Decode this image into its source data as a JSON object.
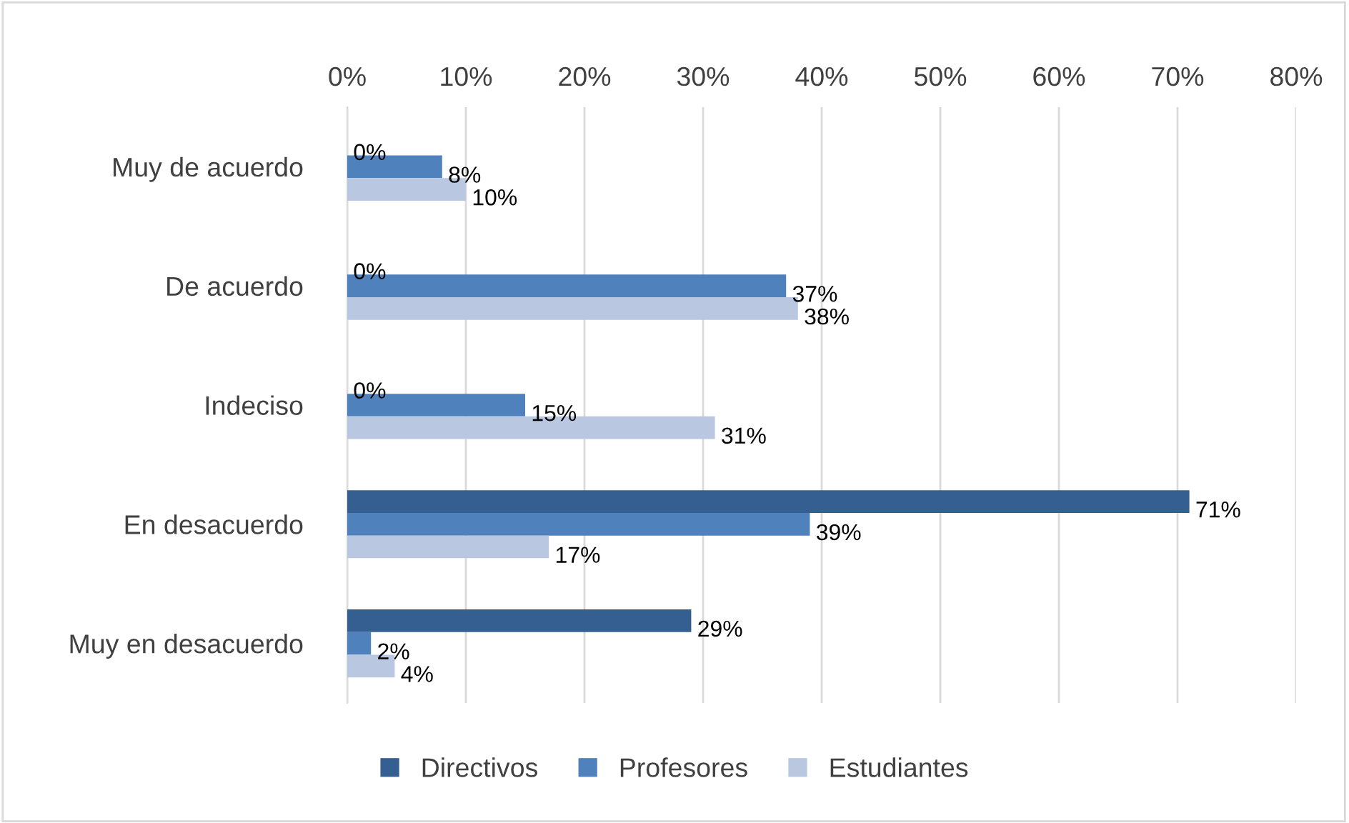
{
  "chart_data": {
    "type": "bar",
    "orientation": "horizontal",
    "categories": [
      "Muy de acuerdo",
      "De acuerdo",
      "Indeciso",
      "En desacuerdo",
      "Muy en desacuerdo"
    ],
    "series": [
      {
        "name": "Directivos",
        "color": "#365f91",
        "values": [
          0,
          0,
          0,
          71,
          29
        ],
        "value_labels": [
          "0%",
          "0%",
          "0%",
          "71%",
          "29%"
        ]
      },
      {
        "name": "Profesores",
        "color": "#4f81bd",
        "values": [
          8,
          37,
          15,
          39,
          2
        ],
        "value_labels": [
          "8%",
          "37%",
          "15%",
          "39%",
          "2%"
        ]
      },
      {
        "name": "Estudiantes",
        "color": "#b9c7e1",
        "values": [
          10,
          38,
          31,
          17,
          4
        ],
        "value_labels": [
          "10%",
          "38%",
          "31%",
          "17%",
          "4%"
        ]
      }
    ],
    "xlim": [
      0,
      80
    ],
    "xticks": [
      {
        "value": 0,
        "label": "0%"
      },
      {
        "value": 10,
        "label": "10%"
      },
      {
        "value": 20,
        "label": "20%"
      },
      {
        "value": 30,
        "label": "30%"
      },
      {
        "value": 40,
        "label": "40%"
      },
      {
        "value": 50,
        "label": "50%"
      },
      {
        "value": 60,
        "label": "60%"
      },
      {
        "value": 70,
        "label": "70%"
      },
      {
        "value": 80,
        "label": "80%"
      }
    ],
    "grid": "x",
    "legend": "bottom"
  }
}
